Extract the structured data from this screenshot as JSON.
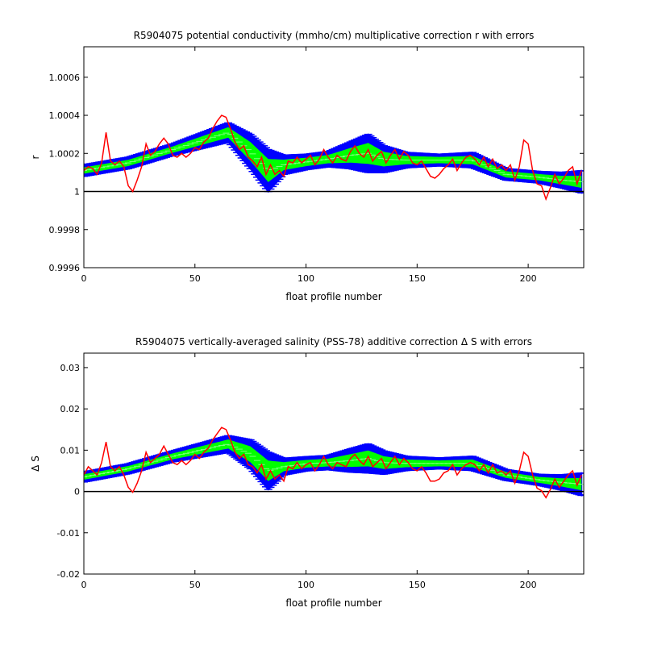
{
  "chart_data": [
    {
      "type": "line",
      "title": "R5904075 potential conductivity (mmho/cm) multiplicative correction r with errors",
      "xlabel": "float profile number",
      "ylabel": "r",
      "xlim": [
        0,
        225
      ],
      "ylim": [
        0.9996,
        1.00076
      ],
      "xticks": [
        0,
        50,
        100,
        150,
        200
      ],
      "yticks": [
        0.9996,
        0.9998,
        1.0,
        1.0002,
        1.0004,
        1.0006
      ],
      "ytick_labels": [
        "0.9996",
        "0.9998",
        "1",
        "1.0002",
        "1.0004",
        "1.0006"
      ],
      "reference_line": 1.0,
      "colors": {
        "error_band": "#0000ff",
        "fit_band": "#00ff00",
        "raw": "#ff0000",
        "reference": "#000000"
      },
      "fit": {
        "x": [
          0,
          20,
          40,
          65,
          75,
          83,
          90,
          100,
          110,
          120,
          128,
          135,
          145,
          160,
          175,
          190,
          205,
          215,
          225
        ],
        "y": [
          1.00011,
          1.00015,
          1.00022,
          1.00031,
          1.00021,
          1.00011,
          1.00014,
          1.000155,
          1.00017,
          1.00019,
          1.0002,
          1.00017,
          1.000165,
          1.000165,
          1.000165,
          1.00009,
          1.000075,
          1.00006,
          1.00005
        ],
        "error": [
          3e-05,
          3e-05,
          3e-05,
          5e-05,
          9e-05,
          0.00011,
          5e-05,
          4e-05,
          4e-05,
          7e-05,
          0.0001,
          7e-05,
          4e-05,
          3e-05,
          4e-05,
          3e-05,
          3e-05,
          4e-05,
          6e-05
        ]
      },
      "raw": {
        "x": [
          0,
          2,
          4,
          6,
          8,
          10,
          12,
          14,
          16,
          18,
          20,
          22,
          24,
          26,
          28,
          30,
          32,
          34,
          36,
          38,
          40,
          42,
          44,
          46,
          48,
          50,
          52,
          54,
          56,
          58,
          60,
          62,
          64,
          66,
          68,
          70,
          72,
          74,
          76,
          78,
          80,
          82,
          84,
          86,
          88,
          90,
          92,
          94,
          96,
          98,
          100,
          102,
          104,
          106,
          108,
          110,
          112,
          114,
          116,
          118,
          120,
          122,
          124,
          126,
          128,
          130,
          132,
          134,
          136,
          138,
          140,
          142,
          144,
          146,
          148,
          150,
          152,
          154,
          156,
          158,
          160,
          162,
          164,
          166,
          168,
          170,
          172,
          174,
          176,
          178,
          180,
          182,
          184,
          186,
          188,
          190,
          192,
          194,
          196,
          198,
          200,
          202,
          204,
          206,
          208,
          210,
          212,
          214,
          216,
          218,
          220,
          222,
          224
        ],
        "y": [
          1.00011,
          1.00013,
          1.00012,
          1.00009,
          1.00015,
          1.00031,
          1.00016,
          1.00014,
          1.00016,
          1.00013,
          1.00003,
          1.0,
          1.00006,
          1.00013,
          1.00025,
          1.00019,
          1.00021,
          1.00025,
          1.00028,
          1.00025,
          1.00019,
          1.00018,
          1.0002,
          1.00018,
          1.0002,
          1.00023,
          1.00022,
          1.00026,
          1.00028,
          1.00033,
          1.00037,
          1.0004,
          1.00039,
          1.00033,
          1.00026,
          1.00022,
          1.00024,
          1.00018,
          1.00016,
          1.00013,
          1.00018,
          1.00009,
          1.00014,
          1.00009,
          1.00011,
          1.00008,
          1.00016,
          1.00015,
          1.00018,
          1.00015,
          1.00017,
          1.00019,
          1.00014,
          1.00017,
          1.00022,
          1.00018,
          1.00015,
          1.00019,
          1.00017,
          1.00016,
          1.00021,
          1.00024,
          1.0002,
          1.00018,
          1.00022,
          1.00016,
          1.00019,
          1.00021,
          1.00015,
          1.00019,
          1.00022,
          1.00017,
          1.00021,
          1.00019,
          1.00015,
          1.00014,
          1.00016,
          1.00012,
          1.00008,
          1.00007,
          1.00009,
          1.00012,
          1.00014,
          1.00017,
          1.00011,
          1.00015,
          1.00018,
          1.00019,
          1.00017,
          1.00014,
          1.00018,
          1.00013,
          1.00017,
          1.00012,
          1.00014,
          1.00011,
          1.00014,
          1.00006,
          1.00013,
          1.00027,
          1.00025,
          1.00011,
          1.00004,
          1.00003,
          0.99996,
          1.00002,
          1.00009,
          1.00004,
          1.00007,
          1.00011,
          1.00013,
          1.00004,
          1.00011
        ]
      }
    },
    {
      "type": "line",
      "title": "R5904075 vertically-averaged salinity (PSS-78) additive correction Δ S with errors",
      "xlabel": "float profile number",
      "ylabel": "Δ S",
      "xlim": [
        0,
        225
      ],
      "ylim": [
        -0.02,
        0.0335
      ],
      "xticks": [
        0,
        50,
        100,
        150,
        200
      ],
      "yticks": [
        -0.02,
        -0.01,
        0.0,
        0.01,
        0.02,
        0.03
      ],
      "ytick_labels": [
        "-0.02",
        "-0.01",
        "0",
        "0.01",
        "0.02",
        "0.03"
      ],
      "reference_line": 0.0,
      "colors": {
        "error_band": "#0000ff",
        "fit_band": "#00ff00",
        "raw": "#ff0000",
        "reference": "#000000"
      },
      "fit": {
        "x": [
          0,
          20,
          40,
          65,
          75,
          83,
          90,
          100,
          110,
          120,
          128,
          135,
          145,
          160,
          175,
          190,
          205,
          215,
          225
        ],
        "y": [
          0.0035,
          0.0055,
          0.0085,
          0.0115,
          0.009,
          0.005,
          0.006,
          0.0067,
          0.007,
          0.0075,
          0.008,
          0.007,
          0.0068,
          0.0068,
          0.0068,
          0.004,
          0.0028,
          0.0022,
          0.0017
        ],
        "error": [
          0.0012,
          0.0012,
          0.0013,
          0.002,
          0.0035,
          0.0045,
          0.002,
          0.0017,
          0.0017,
          0.0028,
          0.0035,
          0.0028,
          0.0017,
          0.0013,
          0.0017,
          0.0013,
          0.0013,
          0.0018,
          0.0028
        ]
      },
      "raw": {
        "x": [
          0,
          2,
          4,
          6,
          8,
          10,
          12,
          14,
          16,
          18,
          20,
          22,
          24,
          26,
          28,
          30,
          32,
          34,
          36,
          38,
          40,
          42,
          44,
          46,
          48,
          50,
          52,
          54,
          56,
          58,
          60,
          62,
          64,
          66,
          68,
          70,
          72,
          74,
          76,
          78,
          80,
          82,
          84,
          86,
          88,
          90,
          92,
          94,
          96,
          98,
          100,
          102,
          104,
          106,
          108,
          110,
          112,
          114,
          116,
          118,
          120,
          122,
          124,
          126,
          128,
          130,
          132,
          134,
          136,
          138,
          140,
          142,
          144,
          146,
          148,
          150,
          152,
          154,
          156,
          158,
          160,
          162,
          164,
          166,
          168,
          170,
          172,
          174,
          176,
          178,
          180,
          182,
          184,
          186,
          188,
          190,
          192,
          194,
          196,
          198,
          200,
          202,
          204,
          206,
          208,
          210,
          212,
          214,
          216,
          218,
          220,
          222,
          224
        ],
        "y": [
          0.004,
          0.006,
          0.005,
          0.004,
          0.007,
          0.012,
          0.006,
          0.005,
          0.006,
          0.004,
          0.001,
          -0.0002,
          0.002,
          0.005,
          0.0095,
          0.007,
          0.008,
          0.009,
          0.011,
          0.009,
          0.007,
          0.0065,
          0.0075,
          0.0065,
          0.0075,
          0.009,
          0.008,
          0.0095,
          0.0105,
          0.0125,
          0.014,
          0.0155,
          0.015,
          0.0125,
          0.0095,
          0.008,
          0.009,
          0.0065,
          0.006,
          0.0045,
          0.0065,
          0.003,
          0.005,
          0.003,
          0.004,
          0.0025,
          0.006,
          0.0055,
          0.007,
          0.0055,
          0.0065,
          0.007,
          0.005,
          0.0065,
          0.0085,
          0.0065,
          0.0055,
          0.007,
          0.0065,
          0.006,
          0.008,
          0.009,
          0.0075,
          0.0065,
          0.0085,
          0.006,
          0.007,
          0.008,
          0.0055,
          0.007,
          0.0085,
          0.0065,
          0.008,
          0.007,
          0.0055,
          0.005,
          0.006,
          0.0045,
          0.0025,
          0.0025,
          0.003,
          0.0045,
          0.005,
          0.0065,
          0.004,
          0.0055,
          0.0065,
          0.007,
          0.0065,
          0.005,
          0.0065,
          0.0045,
          0.0065,
          0.0045,
          0.005,
          0.004,
          0.005,
          0.002,
          0.005,
          0.0095,
          0.0085,
          0.004,
          0.0008,
          0.0002,
          -0.0015,
          0.0005,
          0.003,
          0.001,
          0.0025,
          0.004,
          0.005,
          0.0015,
          0.004
        ]
      }
    }
  ]
}
